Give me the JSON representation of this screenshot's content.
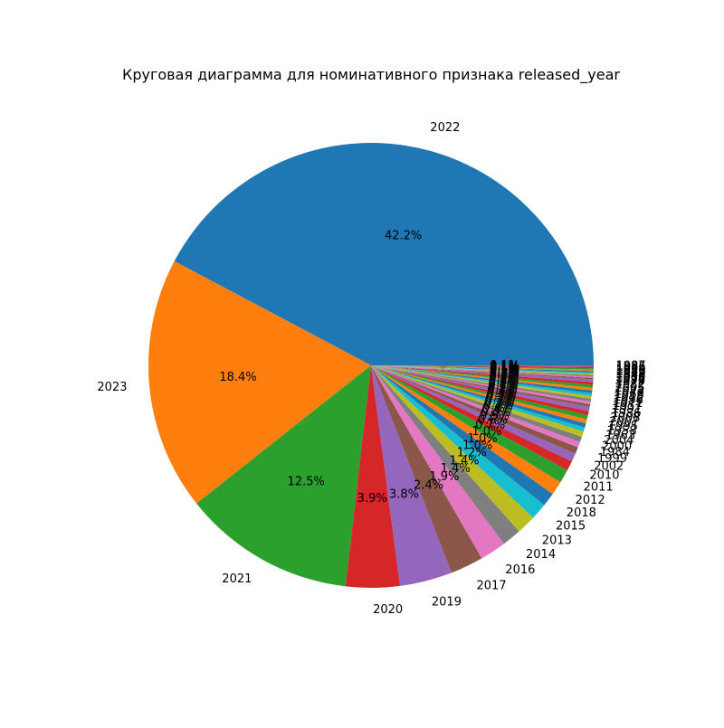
{
  "chart_data": {
    "type": "pie",
    "title": "Круговая диаграмма для номинативного признака released_year",
    "slices": [
      {
        "label": "2022",
        "value": 42.2,
        "pct_label": "42.2%",
        "color": "#1f77b4"
      },
      {
        "label": "2023",
        "value": 18.4,
        "pct_label": "18.4%",
        "color": "#ff7f0e"
      },
      {
        "label": "2021",
        "value": 12.5,
        "pct_label": "12.5%",
        "color": "#2ca02c"
      },
      {
        "label": "2020",
        "value": 3.9,
        "pct_label": "3.9%",
        "color": "#d62728"
      },
      {
        "label": "2019",
        "value": 3.8,
        "pct_label": "3.8%",
        "color": "#9467bd"
      },
      {
        "label": "2017",
        "value": 2.4,
        "pct_label": "2.4%",
        "color": "#8c564b"
      },
      {
        "label": "2016",
        "value": 1.9,
        "pct_label": "1.9%",
        "color": "#e377c2"
      },
      {
        "label": "2014",
        "value": 1.4,
        "pct_label": "1.4%",
        "color": "#7f7f7f"
      },
      {
        "label": "2013",
        "value": 1.4,
        "pct_label": "1.4%",
        "color": "#bcbd22"
      },
      {
        "label": "2015",
        "value": 1.2,
        "pct_label": "1.2%",
        "color": "#17becf"
      },
      {
        "label": "2018",
        "value": 1.0,
        "pct_label": "1.0%",
        "color": "#1f77b4"
      },
      {
        "label": "2012",
        "value": 1.0,
        "pct_label": "1.0%",
        "color": "#ff7f0e"
      },
      {
        "label": "2011",
        "value": 1.0,
        "pct_label": "1.0%",
        "color": "#2ca02c"
      },
      {
        "label": "2010",
        "value": 0.7,
        "pct_label": "0.7%",
        "color": "#d62728"
      },
      {
        "label": "2002",
        "value": 0.6,
        "pct_label": "0.6%",
        "color": "#9467bd"
      },
      {
        "label": "1999",
        "value": 0.5,
        "pct_label": "0.5%",
        "color": "#8c564b"
      },
      {
        "label": "1984",
        "value": 0.4,
        "pct_label": "0.4%",
        "color": "#e377c2"
      },
      {
        "label": "2000",
        "value": 0.4,
        "pct_label": "0.4%",
        "color": "#7f7f7f"
      },
      {
        "label": "2004",
        "value": 0.4,
        "pct_label": "0.4%",
        "color": "#bcbd22"
      },
      {
        "label": "1963",
        "value": 0.3,
        "pct_label": "0.3%",
        "color": "#17becf"
      },
      {
        "label": "1958",
        "value": 0.3,
        "pct_label": "0.3%",
        "color": "#1f77b4"
      },
      {
        "label": "1995",
        "value": 0.3,
        "pct_label": "0.3%",
        "color": "#ff7f0e"
      },
      {
        "label": "2007",
        "value": 0.3,
        "pct_label": "0.3%",
        "color": "#2ca02c"
      },
      {
        "label": "2008",
        "value": 0.3,
        "pct_label": "0.3%",
        "color": "#d62728"
      },
      {
        "label": "1986",
        "value": 0.3,
        "pct_label": "0.3%",
        "color": "#9467bd"
      },
      {
        "label": "1991",
        "value": 0.2,
        "pct_label": "0.2%",
        "color": "#8c564b"
      },
      {
        "label": "1957",
        "value": 0.2,
        "pct_label": "0.2%",
        "color": "#e377c2"
      },
      {
        "label": "1971",
        "value": 0.2,
        "pct_label": "0.2%",
        "color": "#7f7f7f"
      },
      {
        "label": "1996",
        "value": 0.2,
        "pct_label": "0.2%",
        "color": "#bcbd22"
      },
      {
        "label": "1975",
        "value": 0.2,
        "pct_label": "0.2%",
        "color": "#17becf"
      },
      {
        "label": "1968",
        "value": 0.2,
        "pct_label": "0.2%",
        "color": "#1f77b4"
      },
      {
        "label": "1973",
        "value": 0.2,
        "pct_label": "0.2%",
        "color": "#ff7f0e"
      },
      {
        "label": "2005",
        "value": 0.2,
        "pct_label": "0.2%",
        "color": "#2ca02c"
      },
      {
        "label": "1982",
        "value": 0.2,
        "pct_label": "0.2%",
        "color": "#d62728"
      },
      {
        "label": "1979",
        "value": 0.2,
        "pct_label": "0.2%",
        "color": "#9467bd"
      },
      {
        "label": "1992",
        "value": 0.1,
        "pct_label": "0.1%",
        "color": "#8c564b"
      },
      {
        "label": "1970",
        "value": 0.1,
        "pct_label": "0.1%",
        "color": "#e377c2"
      },
      {
        "label": "1930",
        "value": 0.1,
        "pct_label": "0.1%",
        "color": "#7f7f7f"
      },
      {
        "label": "1942",
        "value": 0.1,
        "pct_label": "0.1%",
        "color": "#bcbd22"
      },
      {
        "label": "1952",
        "value": 0.1,
        "pct_label": "0.1%",
        "color": "#17becf"
      },
      {
        "label": "1946",
        "value": 0.1,
        "pct_label": "0.1%",
        "color": "#1f77b4"
      },
      {
        "label": "1950",
        "value": 0.1,
        "pct_label": "0.1%",
        "color": "#ff7f0e"
      },
      {
        "label": "1959",
        "value": 0.1,
        "pct_label": "0.1%",
        "color": "#2ca02c"
      },
      {
        "label": "1985",
        "value": 0.1,
        "pct_label": "0.1%",
        "color": "#d62728"
      },
      {
        "label": "1987",
        "value": 0.1,
        "pct_label": "0.1%",
        "color": "#9467bd"
      }
    ]
  }
}
